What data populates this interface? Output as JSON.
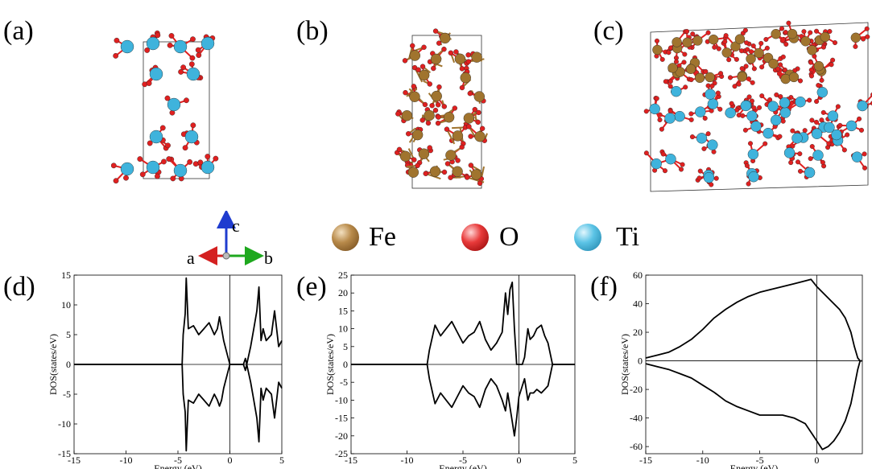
{
  "panel_labels": {
    "a": "(a)",
    "b": "(b)",
    "c": "(c)",
    "d": "(d)",
    "e": "(e)",
    "f": "(f)"
  },
  "legend": [
    {
      "symbol": "Fe",
      "color": "#a0742e"
    },
    {
      "symbol": "O",
      "color": "#e02020"
    },
    {
      "symbol": "Ti",
      "color": "#3fb3dc"
    }
  ],
  "axes_triad": {
    "a": "a",
    "b": "b",
    "c": "c",
    "colors": {
      "a": "#d42020",
      "b": "#1ea81e",
      "c": "#1f3ccf"
    }
  },
  "chart_data": [
    {
      "type": "line",
      "panel": "(d)",
      "xlabel": "Energy (eV)",
      "ylabel": "DOS(states/eV)",
      "xlim": [
        -15,
        5
      ],
      "ylim": [
        -15,
        15
      ],
      "xticks": [
        -15,
        -10,
        -5,
        0,
        5
      ],
      "yticks": [
        -15,
        -10,
        -5,
        0,
        5,
        10,
        15
      ],
      "series": [
        {
          "x": [
            -15,
            -4.6,
            -4.5,
            -4.3,
            -4.2,
            -4.0,
            -3.5,
            -3,
            -2.5,
            -2,
            -1.5,
            -1.2,
            -1,
            -0.8,
            -0.6,
            -0.3,
            0,
            0.1,
            1.3,
            1.5,
            2,
            2.3,
            2.6,
            2.8,
            3.0,
            3.2,
            3.5,
            4,
            4.3,
            4.7,
            5
          ],
          "y": [
            0,
            0,
            5,
            8.5,
            14.5,
            6,
            6.5,
            5,
            6,
            7,
            5,
            6,
            8,
            6,
            4,
            2,
            0,
            0,
            0,
            -1,
            3,
            6,
            9,
            13,
            4,
            6,
            4,
            5,
            9,
            3,
            4
          ]
        },
        {
          "x": [
            -15,
            -4.6,
            -4.5,
            -4.3,
            -4.2,
            -4.0,
            -3.5,
            -3,
            -2.5,
            -2,
            -1.5,
            -1.2,
            -1,
            -0.8,
            -0.6,
            -0.3,
            0,
            0.1,
            1.3,
            1.5,
            2,
            2.3,
            2.6,
            2.8,
            3.0,
            3.2,
            3.5,
            4,
            4.3,
            4.7,
            5
          ],
          "y": [
            0,
            0,
            -5,
            -8,
            -14.5,
            -6,
            -6.5,
            -5,
            -6,
            -7,
            -5,
            -6,
            -7,
            -6,
            -4,
            -2,
            0,
            0,
            0,
            1,
            -3,
            -6,
            -9,
            -13,
            -4,
            -6,
            -4,
            -5,
            -9,
            -3,
            -4
          ]
        }
      ]
    },
    {
      "type": "line",
      "panel": "(e)",
      "xlabel": "Energy (eV)",
      "ylabel": "DOS(states/eV)",
      "xlim": [
        -15,
        5
      ],
      "ylim": [
        -25,
        25
      ],
      "xticks": [
        -15,
        -10,
        -5,
        0,
        5
      ],
      "yticks": [
        -25,
        -20,
        -15,
        -10,
        -5,
        0,
        5,
        10,
        15,
        20,
        25
      ],
      "series": [
        {
          "x": [
            -15,
            -8.2,
            -8,
            -7.5,
            -7,
            -6.5,
            -6,
            -5.5,
            -5,
            -4.5,
            -4,
            -3.5,
            -3,
            -2.5,
            -2,
            -1.5,
            -1.2,
            -1,
            -0.8,
            -0.6,
            -0.4,
            -0.2,
            0,
            0.3,
            0.5,
            0.8,
            1,
            1.3,
            1.6,
            2,
            2.3,
            2.6,
            2.8,
            3,
            5
          ],
          "y": [
            0,
            0,
            4,
            11,
            8,
            10,
            12,
            9,
            6,
            8,
            9,
            12,
            7,
            4,
            6,
            9,
            20,
            14,
            21,
            23,
            10,
            0,
            0,
            0,
            2,
            10,
            7,
            8,
            10,
            11,
            8,
            6,
            3,
            0,
            0
          ]
        },
        {
          "x": [
            -15,
            -8.2,
            -8,
            -7.5,
            -7,
            -6.5,
            -6,
            -5.5,
            -5,
            -4.5,
            -4,
            -3.5,
            -3,
            -2.5,
            -2,
            -1.5,
            -1.2,
            -1,
            -0.8,
            -0.6,
            -0.4,
            -0.2,
            0,
            0.3,
            0.5,
            0.8,
            1,
            1.3,
            1.6,
            2,
            2.3,
            2.6,
            2.8,
            3,
            5
          ],
          "y": [
            0,
            0,
            -4,
            -11,
            -8,
            -10,
            -12,
            -9,
            -6,
            -8,
            -9,
            -12,
            -7,
            -4,
            -6,
            -10,
            -13,
            -8,
            -12,
            -16,
            -20,
            -15,
            -9,
            -6,
            -4,
            -10,
            -8,
            -8,
            -7,
            -8,
            -7,
            -6,
            -3,
            0,
            0
          ]
        }
      ]
    },
    {
      "type": "line",
      "panel": "(f)",
      "xlabel": "Energy (eV)",
      "ylabel": "DOS(states/eV)",
      "xlim": [
        -15,
        4
      ],
      "ylim": [
        -65,
        60
      ],
      "xticks": [
        -15,
        -10,
        -5,
        0
      ],
      "yticks": [
        -60,
        -40,
        -20,
        0,
        20,
        40,
        60
      ],
      "series": [
        {
          "x": [
            -15,
            -14,
            -13,
            -12,
            -11,
            -10,
            -9,
            -8,
            -7,
            -6,
            -5,
            -4,
            -3,
            -2,
            -1,
            -0.5,
            0,
            0.5,
            1,
            1.5,
            2,
            2.5,
            3,
            3.3,
            3.6,
            3.8,
            4
          ],
          "y": [
            2,
            4,
            6,
            10,
            15,
            22,
            30,
            36,
            41,
            45,
            48,
            50,
            52,
            54,
            56,
            57,
            52,
            48,
            44,
            40,
            36,
            30,
            20,
            10,
            2,
            0,
            0
          ]
        },
        {
          "x": [
            -15,
            -14,
            -13,
            -12,
            -11,
            -10,
            -9,
            -8,
            -7,
            -6,
            -5,
            -4,
            -3,
            -2,
            -1,
            -0.5,
            0,
            0.5,
            1,
            1.5,
            2,
            2.5,
            3,
            3.3,
            3.6,
            3.8,
            4
          ],
          "y": [
            -2,
            -4,
            -6,
            -9,
            -12,
            -17,
            -22,
            -28,
            -32,
            -35,
            -38,
            -38,
            -38,
            -40,
            -44,
            -50,
            -56,
            -62,
            -60,
            -56,
            -50,
            -42,
            -30,
            -18,
            -6,
            0,
            0
          ]
        }
      ]
    }
  ]
}
